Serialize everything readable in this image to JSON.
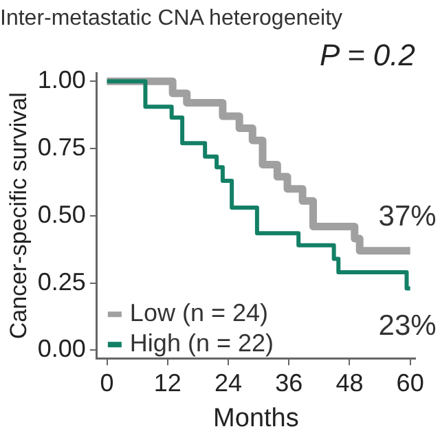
{
  "chart_data": {
    "type": "step",
    "title": "Inter-metastatic CNA heterogeneity",
    "xlabel": "Months",
    "ylabel": "Cancer-specific survival",
    "series": [
      {
        "name": "Low (n = 24)",
        "color": "#a0a0a0",
        "x": [
          0,
          13,
          15.8,
          22.9,
          26.2,
          28.8,
          30.8,
          33.7,
          35.7,
          38.7,
          40.8,
          49,
          50,
          60
        ],
        "values": [
          1.0,
          0.955,
          0.92,
          0.87,
          0.825,
          0.78,
          0.69,
          0.645,
          0.6,
          0.555,
          0.46,
          0.415,
          0.37,
          0.37
        ]
      },
      {
        "name": "High (n = 22)",
        "color": "#138066",
        "x": [
          0,
          7.6,
          12.8,
          14.9,
          19.4,
          21.7,
          22.9,
          24.7,
          29.7,
          37.9,
          44.9,
          45.8,
          59.3,
          60
        ],
        "values": [
          1.0,
          0.905,
          0.865,
          0.77,
          0.72,
          0.68,
          0.63,
          0.53,
          0.435,
          0.39,
          0.34,
          0.29,
          0.23,
          0.23
        ]
      }
    ],
    "xlim": [
      -2,
      61
    ],
    "xticks": [
      0,
      12,
      24,
      36,
      48,
      60
    ],
    "ylim": [
      -0.03,
      1.03
    ],
    "yticks": [
      {
        "value": 0,
        "label": "0.00"
      },
      {
        "value": 0.25,
        "label": "0.25"
      },
      {
        "value": 0.5,
        "label": "0.50"
      },
      {
        "value": 0.75,
        "label": "0.75"
      },
      {
        "value": 1,
        "label": "1.00"
      }
    ],
    "grid": false,
    "legend": "bottom left",
    "marker": "none",
    "line_style": "solid",
    "annotations": [
      "P = 0.2",
      {
        "text": "37%",
        "x": 60,
        "y": 0.37
      },
      {
        "text": "23%",
        "x": 60,
        "y": 0.23
      }
    ]
  }
}
